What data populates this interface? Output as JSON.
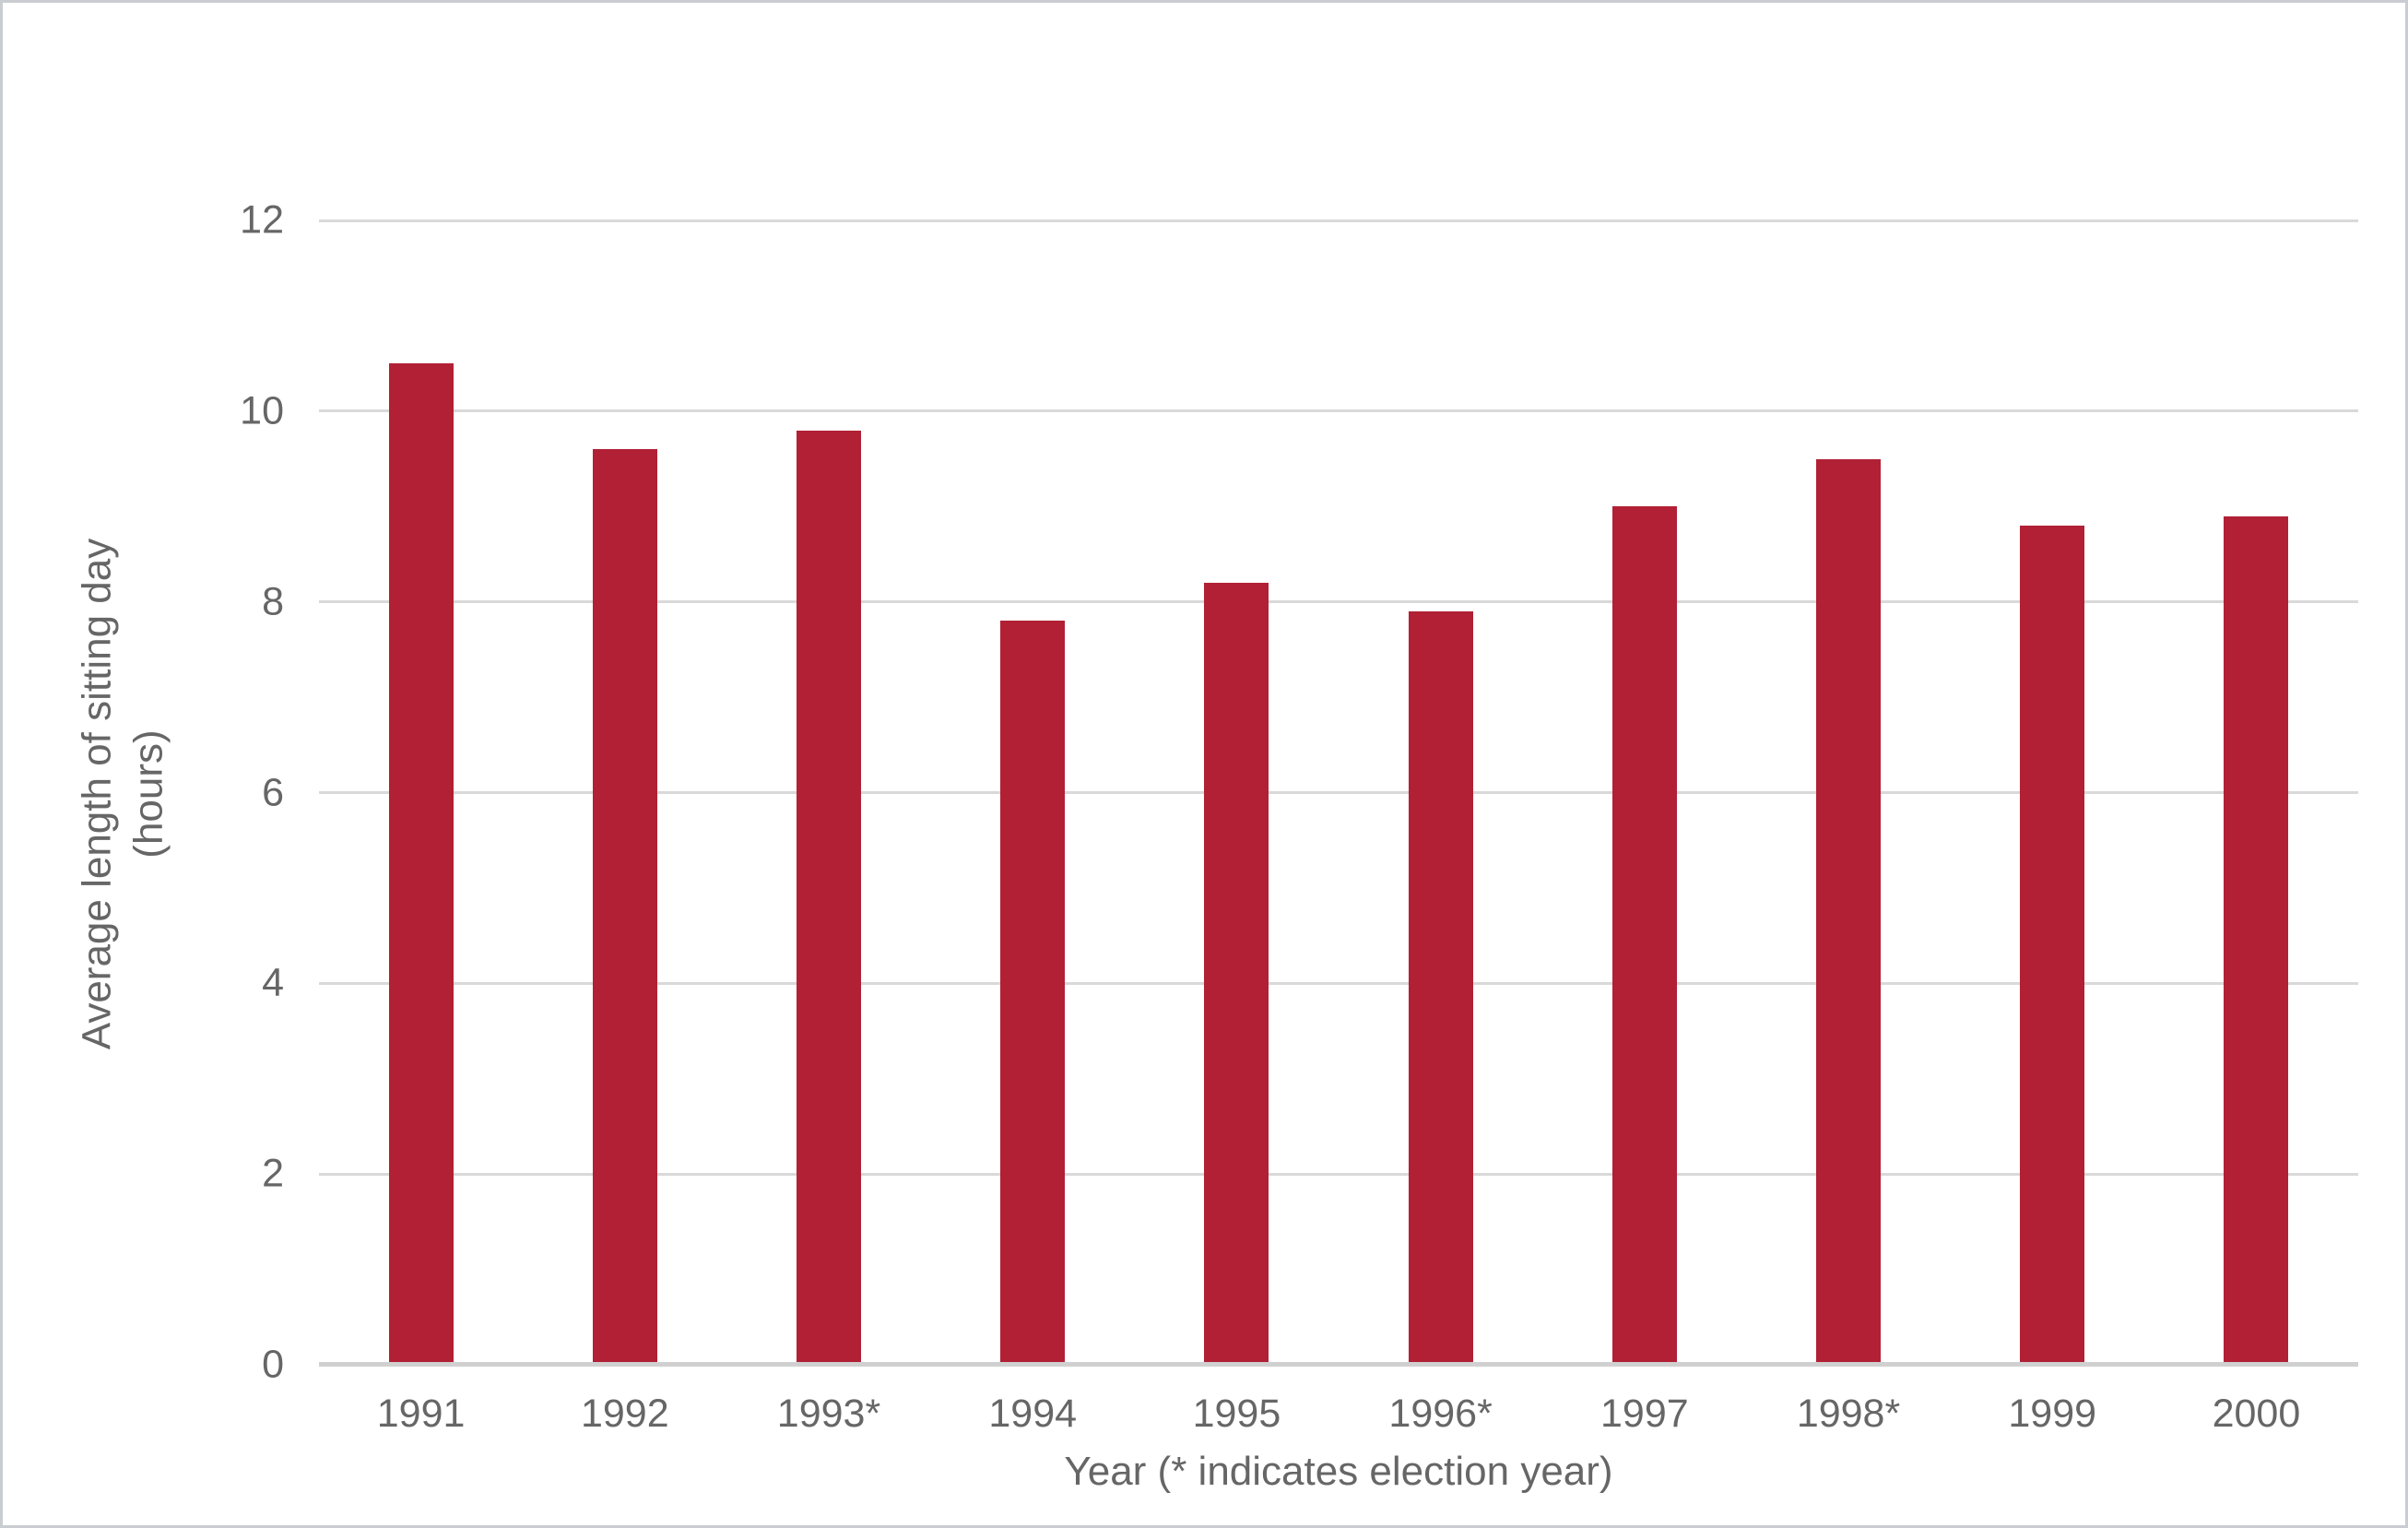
{
  "chart_data": {
    "type": "bar",
    "title": "",
    "categories": [
      "1991",
      "1992",
      "1993*",
      "1994",
      "1995",
      "1996*",
      "1997",
      "1998*",
      "1999",
      "2000"
    ],
    "values": [
      10.5,
      9.6,
      9.8,
      7.8,
      8.2,
      7.9,
      9.0,
      9.5,
      8.8,
      8.9
    ],
    "xlabel": "Year (* indicates election year)",
    "ylabel": "Average length of sitting day (hours)",
    "ylabel_lines": [
      "Average length of sitting day",
      "(hours)"
    ],
    "ylim": [
      0,
      12
    ],
    "yticks": [
      12,
      10,
      8,
      6,
      4,
      2,
      0
    ],
    "grid": true,
    "legend_position": "none",
    "colors": {
      "bar": "#B12035",
      "gridline": "#D9D9D9",
      "axis_line": "#D0D0D0",
      "text": "#666666",
      "background": "#FFFFFF",
      "canvas_border": "#C9CDD1"
    }
  }
}
